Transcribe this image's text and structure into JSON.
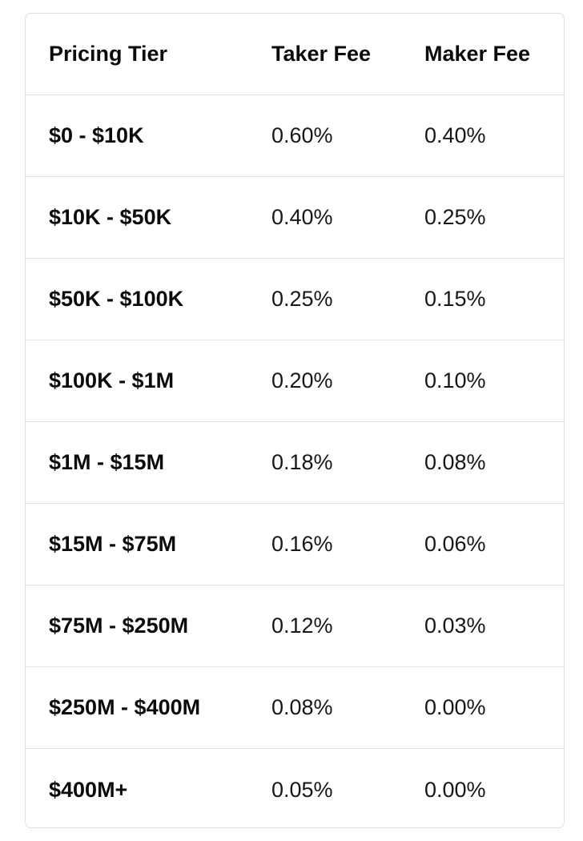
{
  "table": {
    "headers": [
      "Pricing Tier",
      "Taker Fee",
      "Maker Fee"
    ],
    "rows": [
      [
        "$0 - $10K",
        "0.60%",
        "0.40%"
      ],
      [
        "$10K - $50K",
        "0.40%",
        "0.25%"
      ],
      [
        "$50K - $100K",
        "0.25%",
        "0.15%"
      ],
      [
        "$100K - $1M",
        "0.20%",
        "0.10%"
      ],
      [
        "$1M - $15M",
        "0.18%",
        "0.08%"
      ],
      [
        "$15M - $75M",
        "0.16%",
        "0.06%"
      ],
      [
        "$75M - $250M",
        "0.12%",
        "0.03%"
      ],
      [
        "$250M - $400M",
        "0.08%",
        "0.00%"
      ],
      [
        "$400M+",
        "0.05%",
        "0.00%"
      ]
    ]
  }
}
